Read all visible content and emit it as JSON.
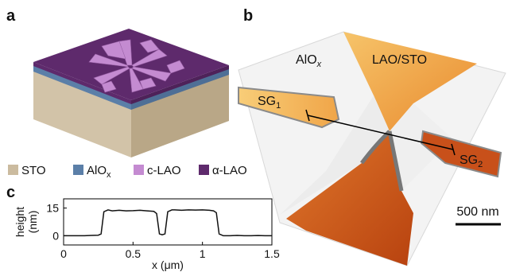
{
  "panel_labels": [
    "a",
    "b",
    "c"
  ],
  "legend": [
    {
      "label": "STO",
      "color": "#cbbb9f"
    },
    {
      "label": {
        "base": "AlO",
        "sub": "x"
      },
      "color": "#5b7fa8"
    },
    {
      "label": "c-LAO",
      "color": "#c48bd1"
    },
    {
      "label": "α-LAO",
      "color": "#5e2a6c"
    }
  ],
  "image_labels": {
    "alox": {
      "base": "AlO",
      "sub": "x"
    },
    "lao_sto": "LAO/STO",
    "sg1": {
      "base": "SG",
      "sub": "1"
    },
    "sg2": {
      "base": "SG",
      "sub": "2"
    },
    "scale_bar": "500 nm"
  },
  "chart_data": {
    "type": "line",
    "x_label": "x (μm)",
    "y_label": [
      "height",
      "(nm)"
    ],
    "x": [
      0,
      0.05,
      0.1,
      0.15,
      0.2,
      0.25,
      0.27,
      0.29,
      0.32,
      0.35,
      0.4,
      0.45,
      0.5,
      0.55,
      0.6,
      0.65,
      0.67,
      0.69,
      0.71,
      0.73,
      0.75,
      0.78,
      0.8,
      0.85,
      0.9,
      0.95,
      1.0,
      1.05,
      1.08,
      1.1,
      1.12,
      1.15,
      1.2,
      1.25,
      1.3,
      1.35,
      1.4,
      1.45,
      1.5
    ],
    "values": [
      0,
      0,
      0,
      0,
      0.2,
      0.3,
      1,
      13,
      14,
      13.5,
      13.8,
      13.5,
      13.6,
      13.8,
      13.5,
      13.2,
      12,
      1,
      0.5,
      1,
      13,
      14,
      14,
      13.8,
      14,
      13.9,
      14,
      13.8,
      13.5,
      12.5,
      1,
      0,
      0,
      0.2,
      0,
      0,
      0.1,
      0,
      0
    ],
    "color": "#111111",
    "xlim": [
      0,
      1.5
    ],
    "xticks": [
      0,
      0.5,
      1,
      1.5
    ],
    "ylim": [
      -5,
      20
    ],
    "yticks": [
      0,
      15
    ]
  }
}
